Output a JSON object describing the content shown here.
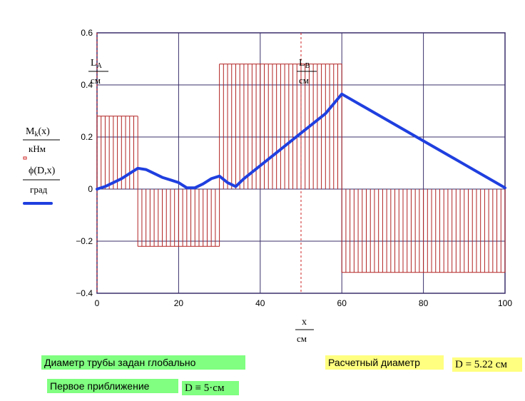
{
  "chart_data": {
    "type": "line+bar",
    "xlim": [
      0,
      100
    ],
    "ylim": [
      -0.4,
      0.6
    ],
    "x_ticks": [
      "0",
      "20",
      "40",
      "60",
      "80",
      "100"
    ],
    "y_ticks": [
      "−0.4",
      "−0.2",
      "0",
      "0.2",
      "0.4",
      "0.6"
    ],
    "grid": true,
    "xlabel": {
      "num": "x",
      "den": "см"
    },
    "ylabel_moment": {
      "num_base": "M",
      "num_sub": "k",
      "num_arg": "(x)",
      "den": "кНм"
    },
    "ylabel_angle": {
      "num": "ϕ(D,x)",
      "den": "град"
    },
    "markers": [
      {
        "x": 0,
        "label_base": "L",
        "label_sub": "A",
        "den": "см"
      },
      {
        "x": 50,
        "label_base": "L",
        "label_sub": "B",
        "den": "см"
      }
    ],
    "bar_segments": [
      {
        "x_start": 0,
        "x_end": 10,
        "value": 0.28
      },
      {
        "x_start": 10,
        "x_end": 30,
        "value": -0.22
      },
      {
        "x_start": 30,
        "x_end": 60,
        "value": 0.48
      },
      {
        "x_start": 60,
        "x_end": 100,
        "value": -0.32
      }
    ],
    "bar_spacing": 1,
    "line_points": [
      [
        0,
        0
      ],
      [
        2,
        0.01
      ],
      [
        4,
        0.025
      ],
      [
        6,
        0.04
      ],
      [
        8,
        0.06
      ],
      [
        10,
        0.08
      ],
      [
        12,
        0.075
      ],
      [
        14,
        0.06
      ],
      [
        16,
        0.045
      ],
      [
        18,
        0.035
      ],
      [
        20,
        0.025
      ],
      [
        22,
        0.005
      ],
      [
        24,
        0.005
      ],
      [
        26,
        0.02
      ],
      [
        28,
        0.04
      ],
      [
        30,
        0.05
      ],
      [
        32,
        0.025
      ],
      [
        34,
        0.01
      ],
      [
        36,
        0.04
      ],
      [
        40,
        0.09
      ],
      [
        44,
        0.14
      ],
      [
        48,
        0.19
      ],
      [
        52,
        0.24
      ],
      [
        56,
        0.29
      ],
      [
        60,
        0.365
      ],
      [
        70,
        0.275
      ],
      [
        80,
        0.185
      ],
      [
        90,
        0.095
      ],
      [
        100,
        0.005
      ]
    ],
    "colors": {
      "bars": "#b22222",
      "line": "#1f3fdf",
      "grid": "#3b2f6b",
      "markers": "#cc2222"
    }
  },
  "notes": {
    "global_diameter": "Диаметр трубы задан глобально",
    "first_approx_label": "Первое приближение",
    "first_approx_value": "D ≡ 5·см",
    "computed_label": "Расчетный диаметр",
    "computed_value": "D = 5.22 см"
  }
}
